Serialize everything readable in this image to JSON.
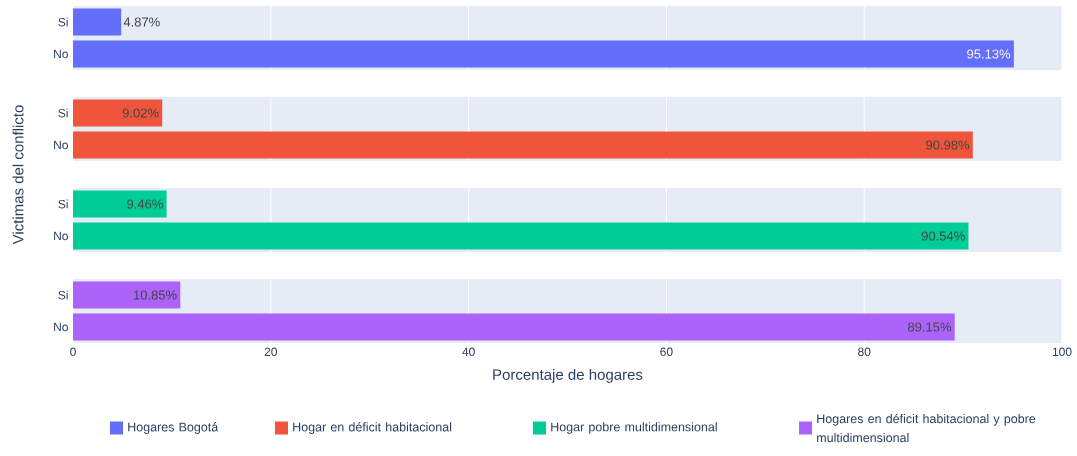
{
  "chart_data": [
    {
      "type": "bar",
      "orientation": "horizontal",
      "categories": [
        "Si",
        "No"
      ],
      "xlim": [
        0,
        100
      ],
      "xticks": [
        0,
        20,
        40,
        60,
        80,
        100
      ],
      "grid": "x",
      "tick_labels": "y",
      "legend": "bottom",
      "ylabel": "Victimas del conflicto",
      "series": [
        {
          "name": "Hogares Bogotá",
          "color": "#636efa",
          "values": [
            4.87,
            95.13
          ],
          "value_labels": [
            "4.87%",
            "95.13%"
          ]
        }
      ]
    },
    {
      "type": "bar",
      "orientation": "horizontal",
      "categories": [
        "Si",
        "No"
      ],
      "xlim": [
        0,
        100
      ],
      "xticks": [
        0,
        20,
        40,
        60,
        80,
        100
      ],
      "grid": "x",
      "tick_labels": "y",
      "legend": "bottom",
      "series": [
        {
          "name": "Hogar en déficit habitacional",
          "color": "#ef553b",
          "values": [
            9.02,
            90.98
          ],
          "value_labels": [
            "9.02%",
            "90.98%"
          ]
        }
      ]
    },
    {
      "type": "bar",
      "orientation": "horizontal",
      "categories": [
        "Si",
        "No"
      ],
      "xlim": [
        0,
        100
      ],
      "xticks": [
        0,
        20,
        40,
        60,
        80,
        100
      ],
      "grid": "x",
      "tick_labels": "y",
      "legend": "bottom",
      "series": [
        {
          "name": "Hogar pobre multidimensional",
          "color": "#00cc96",
          "values": [
            9.46,
            90.54
          ],
          "value_labels": [
            "9.46%",
            "90.54%"
          ]
        }
      ]
    },
    {
      "type": "bar",
      "orientation": "horizontal",
      "categories": [
        "Si",
        "No"
      ],
      "xlim": [
        0,
        100
      ],
      "xticks": [
        0,
        20,
        40,
        60,
        80,
        100
      ],
      "grid": "x",
      "legend": "bottom",
      "xlabel": "Porcentaje de hogares",
      "series": [
        {
          "name": "Hogares en déficit habitacional y pobre multidimensional",
          "color": "#ab63fa",
          "values": [
            10.85,
            89.15
          ],
          "value_labels": [
            "10.85%",
            "89.15%"
          ]
        }
      ]
    }
  ]
}
